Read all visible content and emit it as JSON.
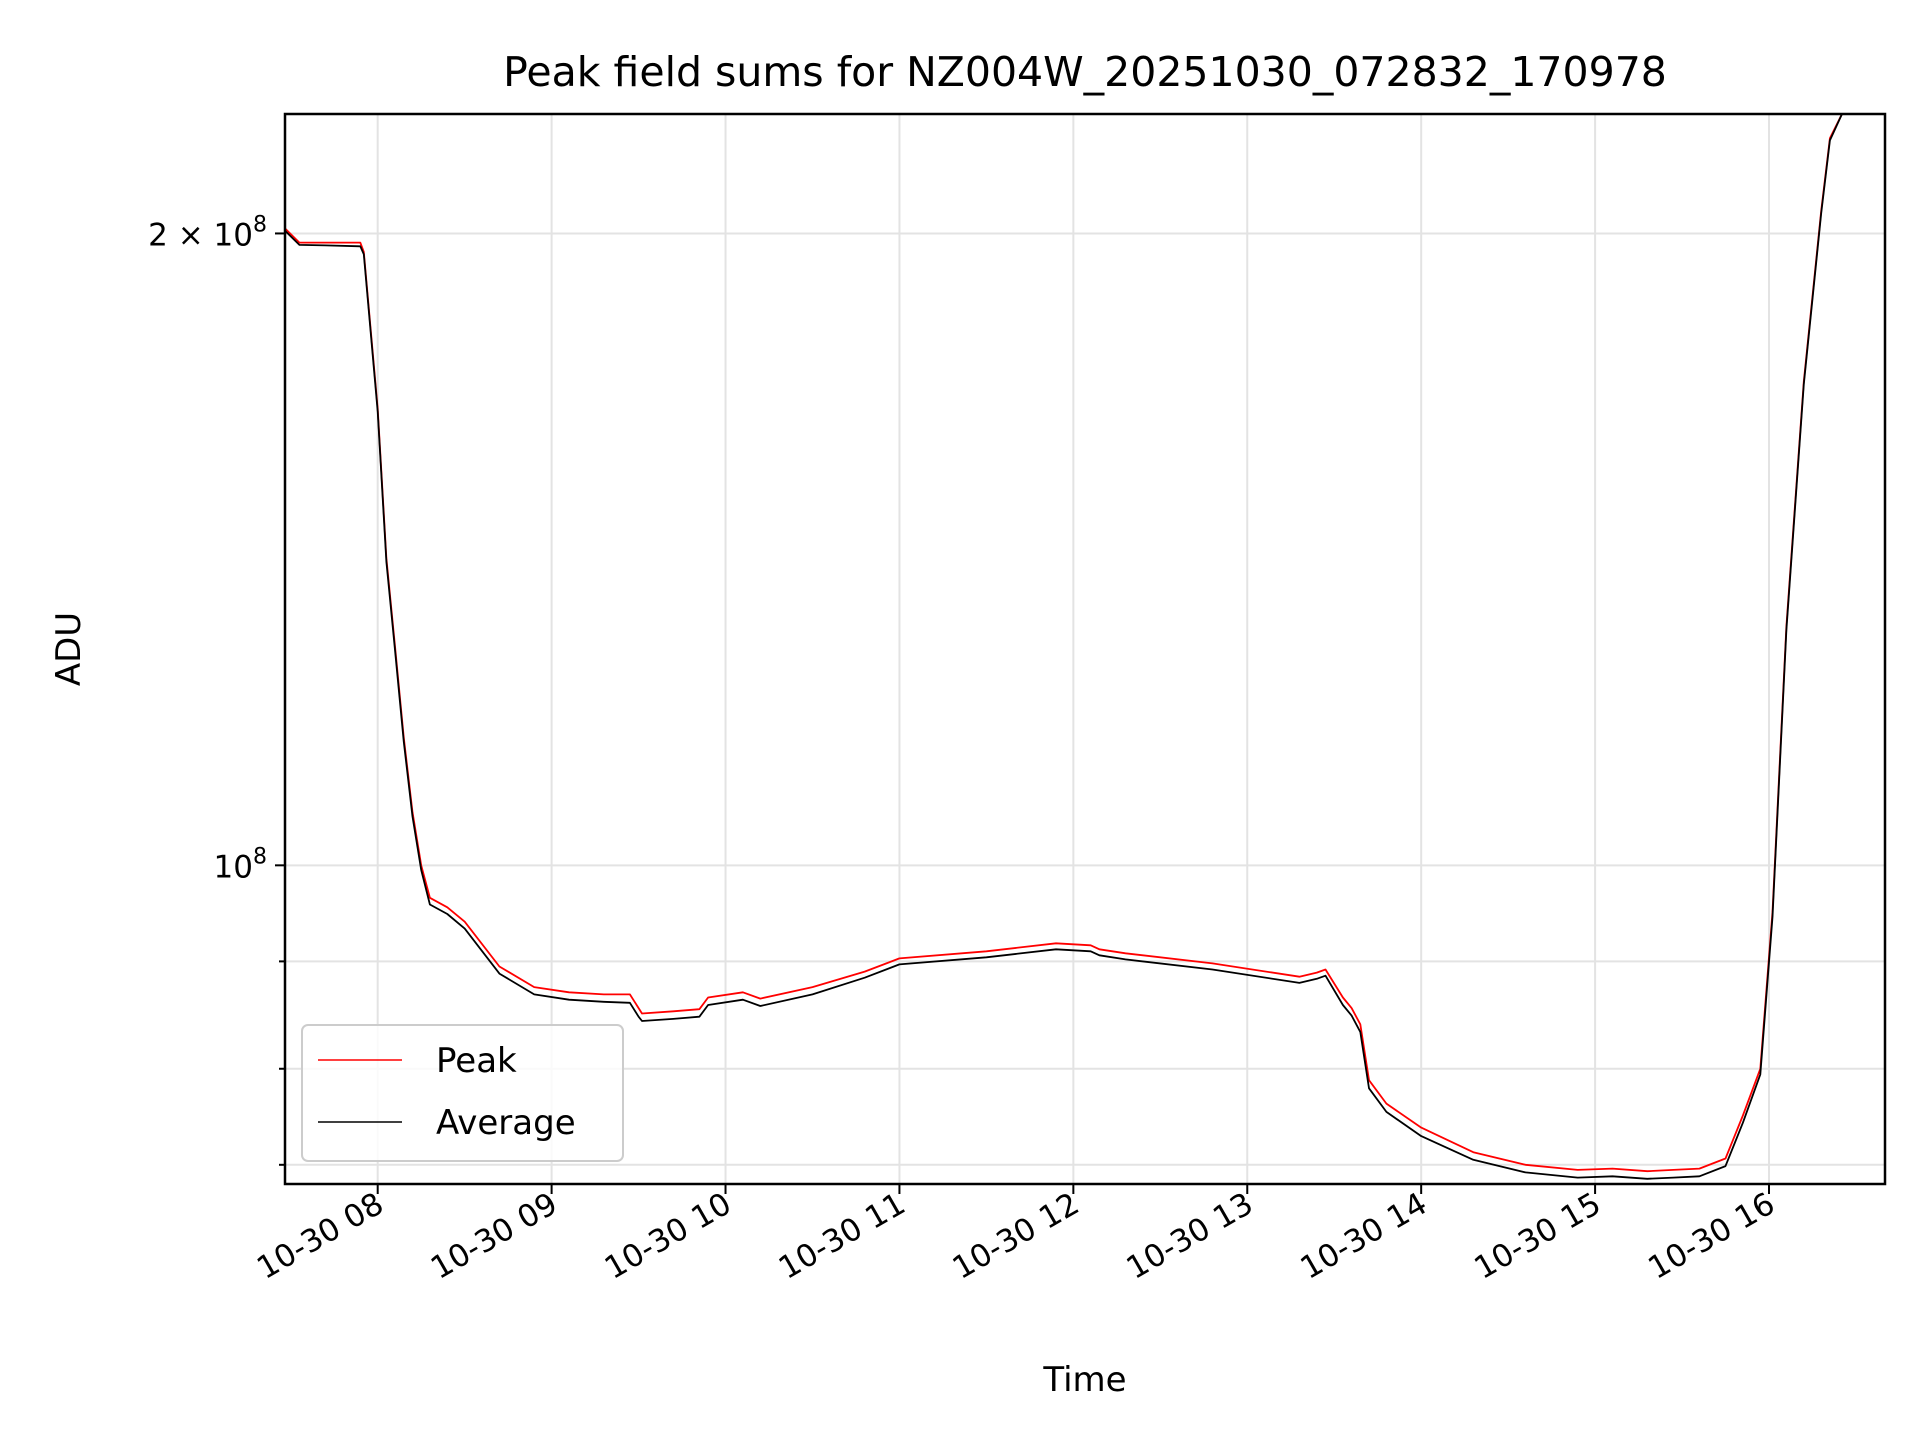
{
  "chart_data": {
    "type": "line",
    "title": "Peak field sums for NZ004W_20251030_072832_170978",
    "xlabel": "Time",
    "ylabel": "ADU",
    "yscale": "log",
    "xlim": [
      "10-30 07:28",
      "10-30 16:40"
    ],
    "ylim": [
      70500000,
      228000000
    ],
    "grid": true,
    "legend_position": "lower-left",
    "x_ticks": [
      "10-30 08",
      "10-30 09",
      "10-30 10",
      "10-30 11",
      "10-30 12",
      "10-30 13",
      "10-30 14",
      "10-30 15",
      "10-30 16"
    ],
    "x_tick_hours": [
      8,
      9,
      10,
      11,
      12,
      13,
      14,
      15,
      16
    ],
    "y_major_ticks": [
      {
        "value": 200000000,
        "mantissa": "2",
        "exponent": "8",
        "has_mantissa": true
      },
      {
        "value": 100000000,
        "mantissa": "",
        "exponent": "8",
        "has_mantissa": false
      }
    ],
    "y_minor_ticks": [
      72000000,
      80000000,
      90000000
    ],
    "x_hours": [
      7.47,
      7.55,
      7.7,
      7.9,
      7.92,
      8.0,
      8.05,
      8.1,
      8.15,
      8.2,
      8.25,
      8.3,
      8.4,
      8.5,
      8.7,
      8.9,
      9.1,
      9.3,
      9.45,
      9.5,
      9.52,
      9.7,
      9.85,
      9.9,
      10.1,
      10.2,
      10.5,
      10.8,
      11.0,
      11.5,
      11.9,
      12.1,
      12.15,
      12.3,
      12.8,
      13.3,
      13.4,
      13.45,
      13.55,
      13.6,
      13.65,
      13.7,
      13.8,
      14.0,
      14.3,
      14.6,
      14.9,
      15.1,
      15.3,
      15.45,
      15.6,
      15.75,
      15.85,
      15.95,
      16.02,
      16.1,
      16.2,
      16.3,
      16.35,
      16.42,
      16.5,
      16.67
    ],
    "series": [
      {
        "name": "Peak",
        "color": "#ff0000",
        "values": [
          201000000,
          198000000,
          198000000,
          198000000,
          196000000,
          165000000,
          140000000,
          127000000,
          115000000,
          106000000,
          100000000,
          96500000,
          95500000,
          94000000,
          89500000,
          87500000,
          87000000,
          86800000,
          86800000,
          85500000,
          85000000,
          85200000,
          85400000,
          86500000,
          87000000,
          86400000,
          87500000,
          89000000,
          90300000,
          91000000,
          91800000,
          91600000,
          91200000,
          90800000,
          89800000,
          88500000,
          88900000,
          89200000,
          86500000,
          85500000,
          84000000,
          79000000,
          77000000,
          75000000,
          73000000,
          72000000,
          71600000,
          71700000,
          71500000,
          71600000,
          71700000,
          72500000,
          76000000,
          80000000,
          95000000,
          130000000,
          170000000,
          205000000,
          222000000,
          228000000,
          228000000,
          228000000
        ]
      },
      {
        "name": "Average",
        "color": "#000000",
        "values": [
          200500000,
          197500000,
          197400000,
          197200000,
          195500000,
          164500000,
          139500000,
          126500000,
          114500000,
          105500000,
          99500000,
          95800000,
          94800000,
          93300000,
          88800000,
          86800000,
          86300000,
          86100000,
          86000000,
          84700000,
          84300000,
          84500000,
          84700000,
          85800000,
          86300000,
          85700000,
          86800000,
          88400000,
          89700000,
          90400000,
          91200000,
          91000000,
          90600000,
          90200000,
          89200000,
          87900000,
          88300000,
          88600000,
          85800000,
          84800000,
          83300000,
          78300000,
          76300000,
          74300000,
          72400000,
          71400000,
          71000000,
          71100000,
          70900000,
          71000000,
          71100000,
          71900000,
          75400000,
          79500000,
          94500000,
          129500000,
          169500000,
          204500000,
          221500000,
          228000000,
          228000000,
          228000000
        ]
      }
    ]
  }
}
